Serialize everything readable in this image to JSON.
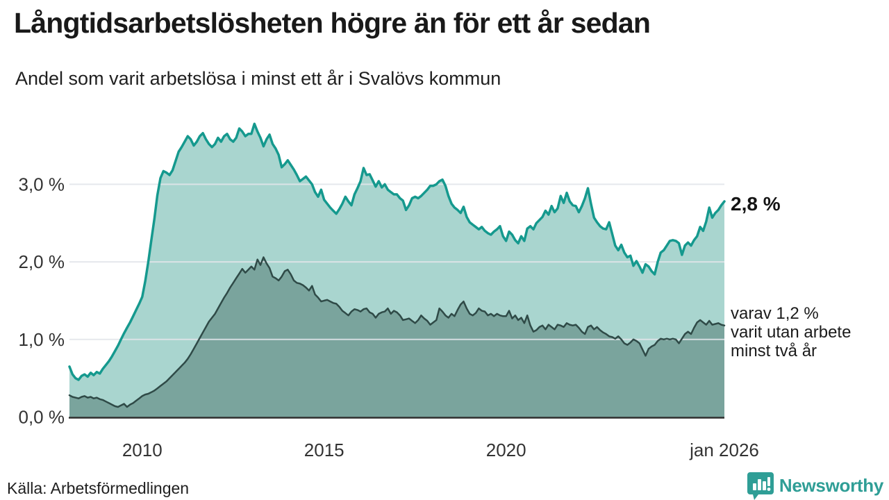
{
  "header": {
    "title": "Långtidsarbetslösheten högre än för ett år sedan",
    "subtitle": "Andel som varit arbetslösa i minst ett år i Svalövs kommun"
  },
  "chart_data": {
    "type": "area",
    "title": "Långtidsarbetslösheten högre än för ett år sedan",
    "subtitle": "Andel som varit arbetslösa i minst ett år i Svalövs kommun",
    "x_unit": "decimal_year_monthly",
    "x_start": 2008.0,
    "x_end": 2026.0,
    "ylim": [
      0,
      3.95
    ],
    "grid": true,
    "grid_color": "rgba(225,229,233,0.88)",
    "axis_line_color": "#2f2f2f",
    "y_ticks": [
      {
        "value": 3.0,
        "label": "3,0 %"
      },
      {
        "value": 2.0,
        "label": "2,0 %"
      },
      {
        "value": 1.0,
        "label": "1,0 %"
      },
      {
        "value": 0.0,
        "label": "0,0 %"
      }
    ],
    "x_ticks": [
      {
        "x": 2010.0,
        "label": "2010"
      },
      {
        "x": 2015.0,
        "label": "2015"
      },
      {
        "x": 2020.0,
        "label": "2020"
      },
      {
        "x": 2026.0,
        "label": "jan 2026"
      }
    ],
    "series": [
      {
        "name": "Andel som varit arbetslösa i minst ett år",
        "line_color": "#15998e",
        "fill_color": "#a9d5cf",
        "line_width": 3.5,
        "end_value": 2.8,
        "values": [
          0.65,
          0.55,
          0.5,
          0.48,
          0.53,
          0.55,
          0.52,
          0.57,
          0.54,
          0.58,
          0.56,
          0.62,
          0.67,
          0.72,
          0.78,
          0.85,
          0.92,
          1.0,
          1.08,
          1.15,
          1.22,
          1.3,
          1.38,
          1.46,
          1.55,
          1.75,
          2.0,
          2.28,
          2.55,
          2.86,
          3.08,
          3.17,
          3.15,
          3.12,
          3.18,
          3.3,
          3.42,
          3.48,
          3.55,
          3.62,
          3.58,
          3.5,
          3.55,
          3.62,
          3.66,
          3.58,
          3.52,
          3.48,
          3.52,
          3.6,
          3.55,
          3.62,
          3.65,
          3.58,
          3.55,
          3.6,
          3.72,
          3.68,
          3.62,
          3.65,
          3.65,
          3.78,
          3.68,
          3.6,
          3.49,
          3.58,
          3.64,
          3.52,
          3.46,
          3.38,
          3.22,
          3.26,
          3.31,
          3.25,
          3.19,
          3.12,
          3.04,
          3.07,
          3.1,
          3.05,
          3.0,
          2.9,
          2.84,
          2.93,
          2.8,
          2.75,
          2.7,
          2.66,
          2.62,
          2.68,
          2.75,
          2.84,
          2.78,
          2.73,
          2.87,
          2.95,
          3.04,
          3.21,
          3.12,
          3.13,
          3.05,
          2.97,
          3.04,
          2.96,
          3.0,
          2.93,
          2.9,
          2.87,
          2.87,
          2.82,
          2.79,
          2.67,
          2.73,
          2.82,
          2.84,
          2.82,
          2.85,
          2.89,
          2.93,
          2.98,
          2.98,
          3.0,
          3.04,
          3.06,
          2.98,
          2.85,
          2.75,
          2.7,
          2.67,
          2.63,
          2.71,
          2.58,
          2.51,
          2.48,
          2.45,
          2.42,
          2.45,
          2.4,
          2.37,
          2.35,
          2.39,
          2.42,
          2.46,
          2.33,
          2.27,
          2.39,
          2.35,
          2.28,
          2.24,
          2.33,
          2.27,
          2.43,
          2.46,
          2.42,
          2.5,
          2.54,
          2.58,
          2.66,
          2.61,
          2.72,
          2.64,
          2.69,
          2.85,
          2.76,
          2.89,
          2.78,
          2.73,
          2.72,
          2.64,
          2.72,
          2.82,
          2.95,
          2.75,
          2.57,
          2.51,
          2.46,
          2.43,
          2.42,
          2.51,
          2.36,
          2.21,
          2.15,
          2.22,
          2.12,
          2.06,
          2.08,
          1.95,
          2.01,
          1.94,
          1.86,
          1.97,
          1.94,
          1.88,
          1.84,
          2.0,
          2.12,
          2.15,
          2.21,
          2.27,
          2.28,
          2.27,
          2.24,
          2.09,
          2.21,
          2.25,
          2.21,
          2.28,
          2.33,
          2.45,
          2.4,
          2.52,
          2.7,
          2.57,
          2.63,
          2.67,
          2.73,
          2.78
        ]
      },
      {
        "name": "varav utan arbete minst två år",
        "line_color": "#2f4a47",
        "fill_color": "#7aa49d",
        "line_width": 2.5,
        "end_value": 1.2,
        "values": [
          0.28,
          0.26,
          0.25,
          0.24,
          0.26,
          0.27,
          0.25,
          0.26,
          0.24,
          0.25,
          0.23,
          0.22,
          0.2,
          0.18,
          0.16,
          0.14,
          0.13,
          0.15,
          0.17,
          0.13,
          0.16,
          0.18,
          0.21,
          0.24,
          0.27,
          0.29,
          0.3,
          0.32,
          0.34,
          0.37,
          0.4,
          0.43,
          0.46,
          0.5,
          0.54,
          0.58,
          0.62,
          0.66,
          0.7,
          0.75,
          0.81,
          0.88,
          0.95,
          1.02,
          1.09,
          1.16,
          1.23,
          1.28,
          1.33,
          1.4,
          1.47,
          1.54,
          1.6,
          1.67,
          1.73,
          1.79,
          1.85,
          1.91,
          1.86,
          1.9,
          1.94,
          1.9,
          2.03,
          1.96,
          2.06,
          1.98,
          1.92,
          1.81,
          1.79,
          1.76,
          1.81,
          1.88,
          1.9,
          1.84,
          1.76,
          1.73,
          1.72,
          1.7,
          1.67,
          1.63,
          1.69,
          1.58,
          1.54,
          1.49,
          1.5,
          1.51,
          1.49,
          1.47,
          1.46,
          1.42,
          1.37,
          1.34,
          1.31,
          1.36,
          1.39,
          1.38,
          1.36,
          1.39,
          1.4,
          1.35,
          1.33,
          1.28,
          1.33,
          1.35,
          1.36,
          1.4,
          1.33,
          1.37,
          1.35,
          1.31,
          1.25,
          1.26,
          1.27,
          1.24,
          1.21,
          1.25,
          1.31,
          1.27,
          1.24,
          1.19,
          1.22,
          1.25,
          1.4,
          1.36,
          1.31,
          1.28,
          1.33,
          1.3,
          1.38,
          1.45,
          1.49,
          1.4,
          1.33,
          1.31,
          1.34,
          1.4,
          1.37,
          1.36,
          1.31,
          1.33,
          1.3,
          1.33,
          1.31,
          1.3,
          1.3,
          1.37,
          1.27,
          1.31,
          1.25,
          1.28,
          1.21,
          1.31,
          1.18,
          1.1,
          1.12,
          1.16,
          1.18,
          1.13,
          1.19,
          1.16,
          1.13,
          1.19,
          1.18,
          1.16,
          1.21,
          1.19,
          1.18,
          1.19,
          1.15,
          1.1,
          1.07,
          1.16,
          1.18,
          1.13,
          1.16,
          1.12,
          1.09,
          1.07,
          1.04,
          1.03,
          1.01,
          1.04,
          1.0,
          0.95,
          0.93,
          0.96,
          1.0,
          0.98,
          0.95,
          0.87,
          0.79,
          0.88,
          0.91,
          0.93,
          0.98,
          1.01,
          1.0,
          1.01,
          1.0,
          1.01,
          1.0,
          0.95,
          1.01,
          1.07,
          1.1,
          1.07,
          1.15,
          1.22,
          1.25,
          1.22,
          1.19,
          1.24,
          1.19,
          1.2,
          1.21,
          1.19,
          1.18
        ]
      }
    ],
    "annotations": {
      "end_value_label": "2,8 %",
      "secondary_label_line1": "varav 1,2 %",
      "secondary_label_line2": "varit utan arbete",
      "secondary_label_line3": "minst två år"
    },
    "legend_position": "right-annotations"
  },
  "footer": {
    "source": "Källa: Arbetsförmedlingen",
    "brand": "Newsworthy",
    "brand_color": "#2f9e96"
  }
}
